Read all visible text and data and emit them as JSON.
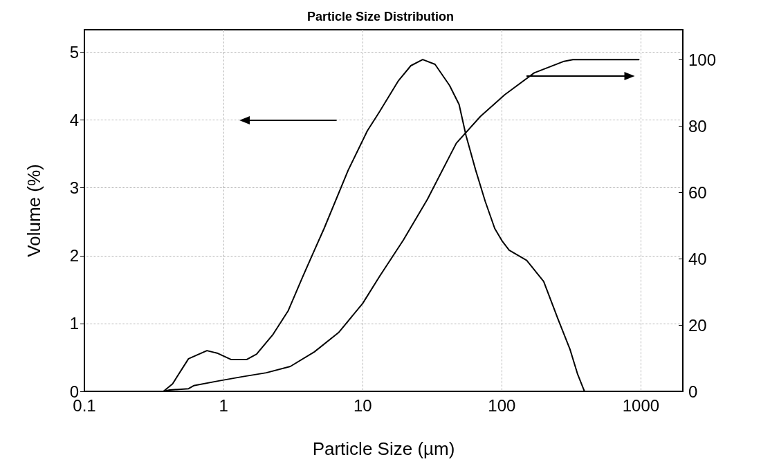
{
  "chart_data": {
    "type": "line",
    "title": "Particle Size Distribution",
    "xlabel": "Particle Size (µm)",
    "ylabel": "Volume (%)",
    "log": "x",
    "grid": true,
    "marker": "none",
    "line_style": "solid",
    "xlim": [
      0.1,
      2000
    ],
    "xticks": [
      0.1,
      1,
      10,
      100,
      1000
    ],
    "ylim": [
      0,
      5.33
    ],
    "yticks": [
      0,
      1,
      2,
      3,
      4,
      5
    ],
    "y2lim": [
      0,
      109
    ],
    "y2ticks": [
      0,
      20,
      40,
      60,
      80,
      100
    ],
    "series": [
      {
        "color": "#000000",
        "x": [
          0.37,
          0.43,
          0.56,
          0.76,
          0.91,
          1.13,
          1.47,
          1.73,
          2.27,
          2.92,
          3.71,
          4.5,
          5.28,
          7.87,
          10.8,
          13.2,
          18.1,
          22.2,
          27,
          33.1,
          42.1,
          49.3,
          55.3,
          64.9,
          76,
          89,
          101,
          113,
          151,
          200,
          255,
          309,
          351,
          384,
          393
        ],
        "values": [
          0,
          0.11,
          0.48,
          0.6,
          0.56,
          0.47,
          0.47,
          0.55,
          0.84,
          1.19,
          1.69,
          2.08,
          2.4,
          3.26,
          3.84,
          4.12,
          4.58,
          4.8,
          4.89,
          4.82,
          4.51,
          4.23,
          3.77,
          3.26,
          2.8,
          2.4,
          2.21,
          2.08,
          1.93,
          1.62,
          1.05,
          0.62,
          0.25,
          0.05,
          0
        ]
      },
      {
        "color": "#000000",
        "axis": "y2",
        "x": [
          0.37,
          0.41,
          0.56,
          0.61,
          0.91,
          1.36,
          2.03,
          3.02,
          4.5,
          6.71,
          10,
          13.2,
          19.6,
          29.2,
          47.1,
          70.3,
          105,
          171,
          276,
          324,
          966
        ],
        "values": [
          0,
          0.4,
          0.8,
          1.7,
          3.1,
          4.4,
          5.6,
          7.5,
          11.9,
          17.7,
          26.5,
          34.6,
          45.6,
          57.9,
          74.8,
          82.9,
          89.4,
          96,
          99.4,
          100,
          100
        ]
      }
    ]
  }
}
